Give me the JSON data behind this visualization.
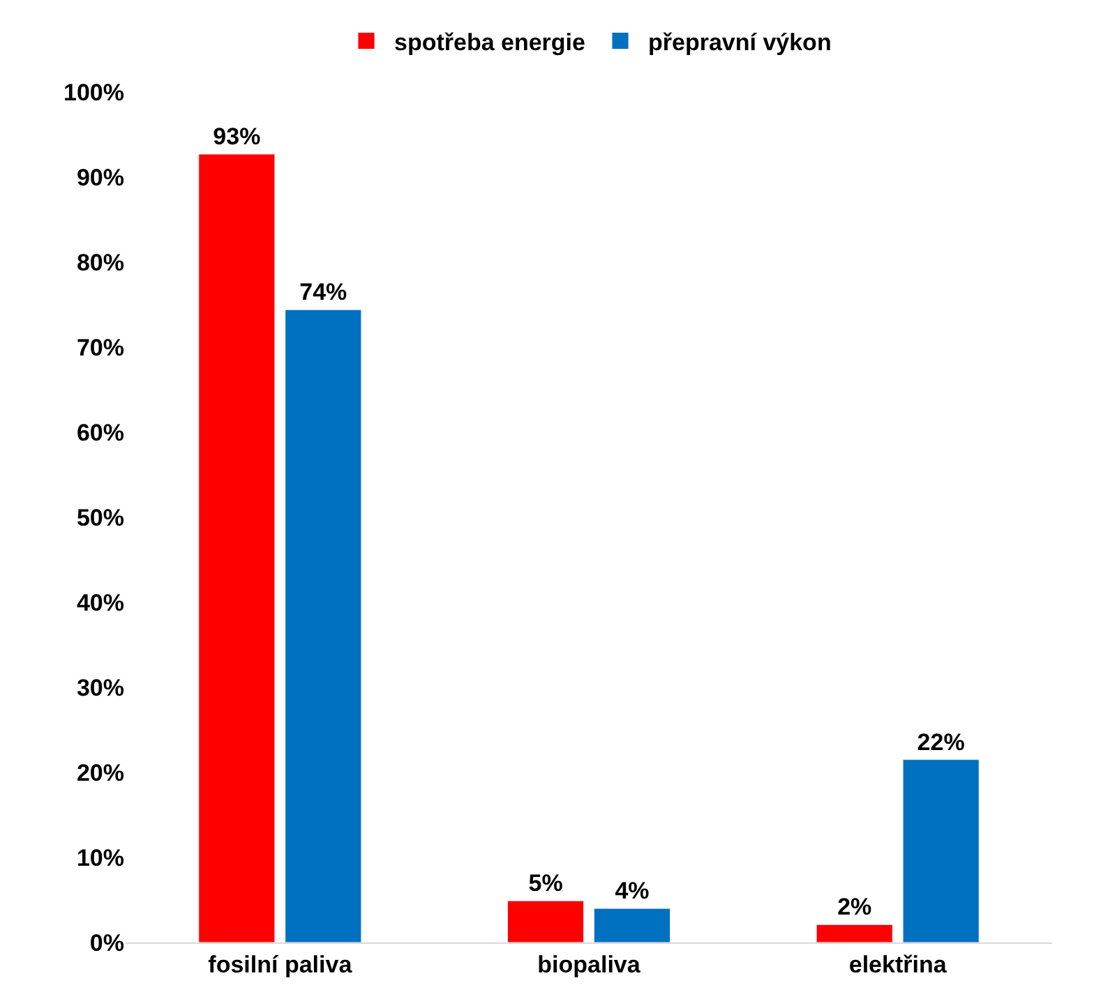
{
  "chart_data": {
    "type": "bar",
    "categories": [
      "fosilní paliva",
      "biopaliva",
      "elektřina"
    ],
    "series": [
      {
        "name": "spotřeba energie",
        "color": "#ff0000",
        "values": [
          92.7,
          4.9,
          2.1
        ],
        "value_labels": [
          "93%",
          "5%",
          "2%"
        ]
      },
      {
        "name": "přepravní výkon",
        "color": "#0070c0",
        "values": [
          74.4,
          4.0,
          21.5
        ],
        "value_labels": [
          "74%",
          "4%",
          "22%"
        ]
      }
    ],
    "ylim": [
      0,
      100
    ],
    "yticks": [
      {
        "value": 0,
        "label": "0%"
      },
      {
        "value": 10,
        "label": "10%"
      },
      {
        "value": 20,
        "label": "20%"
      },
      {
        "value": 30,
        "label": "30%"
      },
      {
        "value": 40,
        "label": "40%"
      },
      {
        "value": 50,
        "label": "50%"
      },
      {
        "value": 60,
        "label": "60%"
      },
      {
        "value": 70,
        "label": "70%"
      },
      {
        "value": 80,
        "label": "80%"
      },
      {
        "value": 90,
        "label": "90%"
      },
      {
        "value": 100,
        "label": "100%"
      }
    ],
    "legend": "top"
  }
}
